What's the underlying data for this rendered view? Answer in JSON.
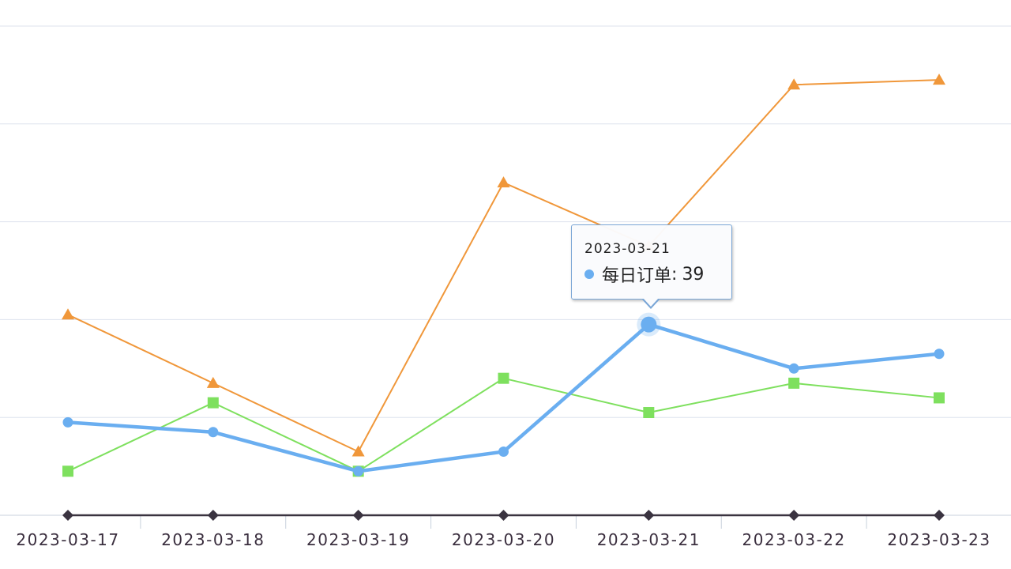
{
  "chart_data": {
    "type": "line",
    "categories": [
      "2023-03-17",
      "2023-03-18",
      "2023-03-19",
      "2023-03-20",
      "2023-03-21",
      "2023-03-22",
      "2023-03-23"
    ],
    "ylim": [
      0,
      100
    ],
    "yticks": [
      0,
      20,
      40,
      60,
      80,
      100
    ],
    "grid": true,
    "series": [
      {
        "name": "",
        "color": "#f0973a",
        "marker": "triangle",
        "values": [
          41,
          27,
          13,
          68,
          55,
          88,
          89
        ]
      },
      {
        "name": "",
        "color": "#7ee05e",
        "marker": "square",
        "values": [
          9,
          23,
          9,
          28,
          21,
          27,
          24
        ]
      },
      {
        "name": "每日订单",
        "color": "#6aaef0",
        "marker": "circle",
        "values": [
          19,
          17,
          9,
          13,
          39,
          30,
          33
        ]
      },
      {
        "name": "",
        "color": "#3a3340",
        "marker": "diamond",
        "values": [
          0,
          0,
          0,
          0,
          0,
          0,
          0
        ]
      }
    ],
    "tooltip": {
      "title": "2023-03-21",
      "series": "每日订单",
      "separator": ":",
      "value": "39"
    }
  }
}
